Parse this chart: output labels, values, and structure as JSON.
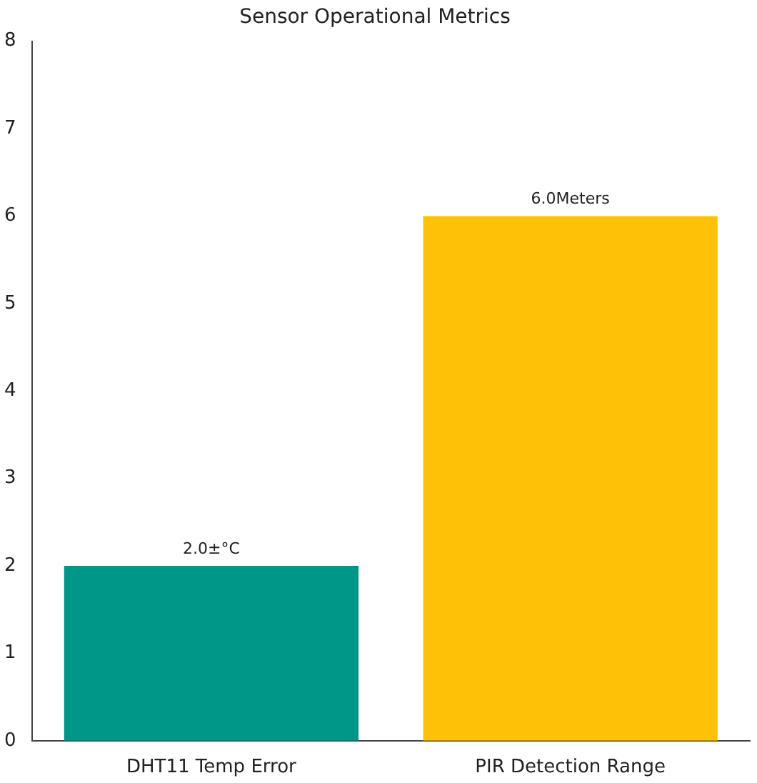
{
  "chart_data": {
    "type": "bar",
    "title": "Sensor Operational Metrics",
    "categories": [
      "DHT11 Temp Error",
      "PIR Detection Range"
    ],
    "values": [
      2.0,
      6.0
    ],
    "colors": [
      "#009688",
      "#ffc107"
    ],
    "value_labels": [
      "2.0±°C",
      "6.0Meters"
    ],
    "ylim": [
      0,
      8
    ],
    "yticks": [
      0,
      1,
      2,
      3,
      4,
      5,
      6,
      7,
      8
    ],
    "grid": false,
    "legend": false
  }
}
